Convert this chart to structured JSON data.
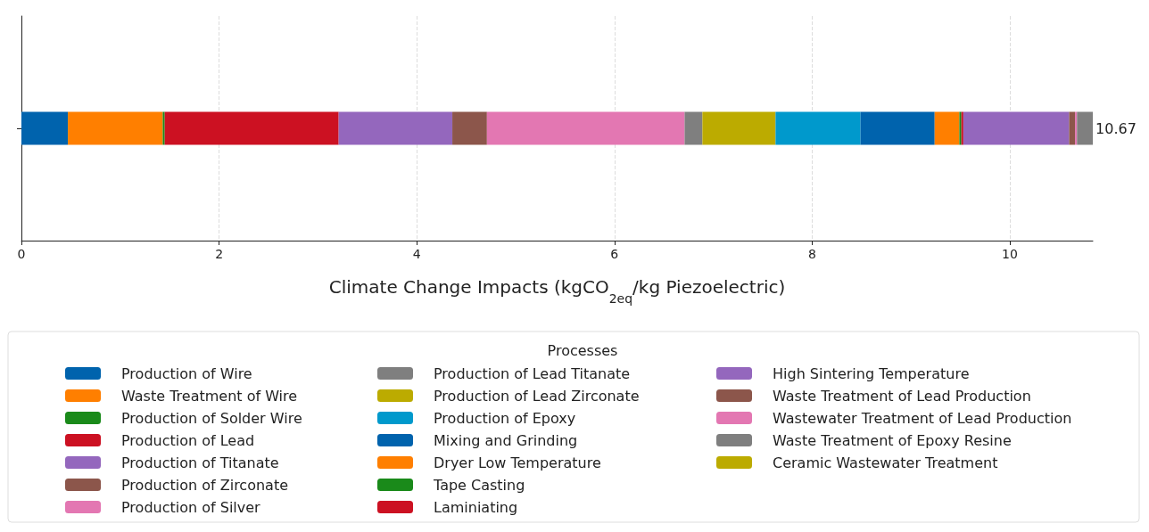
{
  "chart_data": {
    "type": "bar",
    "orientation": "horizontal",
    "stacked": true,
    "xlabel": "Climate Change Impacts (kgCO$_{2eq}$/kg Piezoelectric)",
    "legend_title": "Processes",
    "legend": "bottom",
    "grid": "x",
    "categories": [
      null
    ],
    "xlim": [
      0,
      10.84
    ],
    "xticks": [
      0,
      2,
      4,
      6,
      8,
      10
    ],
    "annotations": [
      "10.67"
    ],
    "series": [
      {
        "name": "Production of Wire",
        "color": "#0063ad",
        "values": [
          0.47
        ]
      },
      {
        "name": "Waste Treatment of Wire",
        "color": "#ff7f00",
        "values": [
          0.96
        ]
      },
      {
        "name": "Production of Solder Wire",
        "color": "#1a8a1a",
        "values": [
          0.02
        ]
      },
      {
        "name": "Production of Lead",
        "color": "#cc1122",
        "values": [
          1.76
        ]
      },
      {
        "name": "Production of Titanate",
        "color": "#9467bd",
        "values": [
          1.15
        ]
      },
      {
        "name": "Production of Zirconate",
        "color": "#8c564b",
        "values": [
          0.35
        ]
      },
      {
        "name": "Production of Silver",
        "color": "#e377b2",
        "values": [
          2.0
        ]
      },
      {
        "name": "Production of Lead Titanate",
        "color": "#7f7f7f",
        "values": [
          0.18
        ]
      },
      {
        "name": "Production of Lead Zirconate",
        "color": "#bcab00",
        "values": [
          0.74
        ]
      },
      {
        "name": "Production of Epoxy",
        "color": "#0099cc",
        "values": [
          0.86
        ]
      },
      {
        "name": "Mixing and Grinding",
        "color": "#0063ad",
        "values": [
          0.75
        ]
      },
      {
        "name": "Dryer Low Temperature",
        "color": "#ff7f00",
        "values": [
          0.25
        ]
      },
      {
        "name": "Tape Casting",
        "color": "#1a8a1a",
        "values": [
          0.02
        ]
      },
      {
        "name": "Laminiating",
        "color": "#cc1122",
        "values": [
          0.02
        ]
      },
      {
        "name": "High Sintering Temperature",
        "color": "#9467bd",
        "values": [
          1.07
        ]
      },
      {
        "name": "Waste Treatment of Lead Production",
        "color": "#8c564b",
        "values": [
          0.06
        ]
      },
      {
        "name": "Wastewater Treatment of Lead Production",
        "color": "#e377b2",
        "values": [
          0.02
        ]
      },
      {
        "name": "Waste Treatment of Epoxy Resine",
        "color": "#7f7f7f",
        "values": [
          0.17
        ]
      },
      {
        "name": "Ceramic Wastewater Treatment",
        "color": "#bcab00",
        "values": [
          0
        ]
      }
    ]
  }
}
